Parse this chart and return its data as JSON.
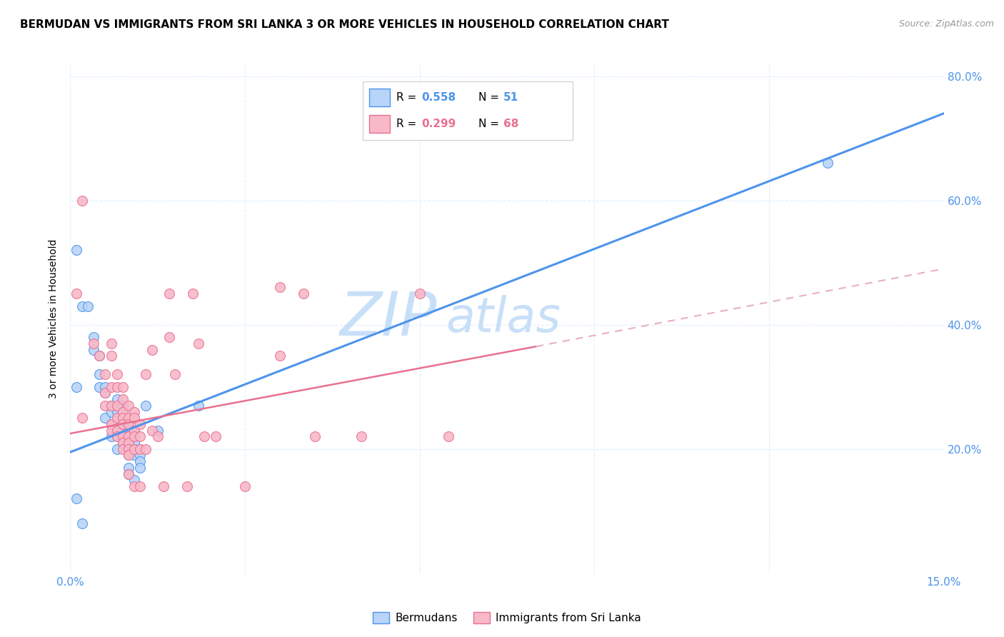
{
  "title": "BERMUDAN VS IMMIGRANTS FROM SRI LANKA 3 OR MORE VEHICLES IN HOUSEHOLD CORRELATION CHART",
  "source": "Source: ZipAtlas.com",
  "ylabel": "3 or more Vehicles in Household",
  "xmin": 0.0,
  "xmax": 0.15,
  "ymin": 0.0,
  "ymax": 0.82,
  "watermark_zip": "ZIP",
  "watermark_atlas": "atlas",
  "watermark_color": "#c8dff8",
  "blue_color": "#4d94eb",
  "pink_color": "#e87090",
  "pink_dashed_color": "#e8b0c0",
  "blue_scatter_color": "#b8d4f8",
  "pink_scatter_color": "#f8b8c8",
  "bermudans": [
    [
      0.001,
      0.52
    ],
    [
      0.002,
      0.43
    ],
    [
      0.003,
      0.43
    ],
    [
      0.004,
      0.38
    ],
    [
      0.004,
      0.36
    ],
    [
      0.005,
      0.35
    ],
    [
      0.005,
      0.32
    ],
    [
      0.005,
      0.3
    ],
    [
      0.006,
      0.3
    ],
    [
      0.006,
      0.29
    ],
    [
      0.006,
      0.25
    ],
    [
      0.007,
      0.27
    ],
    [
      0.007,
      0.26
    ],
    [
      0.007,
      0.24
    ],
    [
      0.007,
      0.22
    ],
    [
      0.008,
      0.28
    ],
    [
      0.008,
      0.26
    ],
    [
      0.008,
      0.24
    ],
    [
      0.008,
      0.22
    ],
    [
      0.008,
      0.2
    ],
    [
      0.009,
      0.27
    ],
    [
      0.009,
      0.25
    ],
    [
      0.009,
      0.24
    ],
    [
      0.009,
      0.23
    ],
    [
      0.009,
      0.22
    ],
    [
      0.009,
      0.21
    ],
    [
      0.01,
      0.24
    ],
    [
      0.01,
      0.23
    ],
    [
      0.01,
      0.22
    ],
    [
      0.01,
      0.21
    ],
    [
      0.01,
      0.2
    ],
    [
      0.01,
      0.19
    ],
    [
      0.01,
      0.17
    ],
    [
      0.01,
      0.16
    ],
    [
      0.011,
      0.23
    ],
    [
      0.011,
      0.22
    ],
    [
      0.011,
      0.21
    ],
    [
      0.011,
      0.2
    ],
    [
      0.011,
      0.19
    ],
    [
      0.011,
      0.15
    ],
    [
      0.012,
      0.2
    ],
    [
      0.012,
      0.19
    ],
    [
      0.012,
      0.18
    ],
    [
      0.012,
      0.17
    ],
    [
      0.013,
      0.27
    ],
    [
      0.015,
      0.23
    ],
    [
      0.022,
      0.27
    ],
    [
      0.001,
      0.12
    ],
    [
      0.002,
      0.08
    ],
    [
      0.13,
      0.66
    ],
    [
      0.001,
      0.3
    ]
  ],
  "sri_lanka": [
    [
      0.002,
      0.6
    ],
    [
      0.004,
      0.37
    ],
    [
      0.005,
      0.35
    ],
    [
      0.006,
      0.32
    ],
    [
      0.006,
      0.29
    ],
    [
      0.006,
      0.27
    ],
    [
      0.007,
      0.37
    ],
    [
      0.007,
      0.35
    ],
    [
      0.007,
      0.3
    ],
    [
      0.007,
      0.27
    ],
    [
      0.007,
      0.24
    ],
    [
      0.007,
      0.23
    ],
    [
      0.008,
      0.32
    ],
    [
      0.008,
      0.3
    ],
    [
      0.008,
      0.27
    ],
    [
      0.008,
      0.25
    ],
    [
      0.008,
      0.23
    ],
    [
      0.008,
      0.22
    ],
    [
      0.009,
      0.3
    ],
    [
      0.009,
      0.28
    ],
    [
      0.009,
      0.26
    ],
    [
      0.009,
      0.25
    ],
    [
      0.009,
      0.24
    ],
    [
      0.009,
      0.22
    ],
    [
      0.009,
      0.21
    ],
    [
      0.009,
      0.2
    ],
    [
      0.01,
      0.27
    ],
    [
      0.01,
      0.25
    ],
    [
      0.01,
      0.24
    ],
    [
      0.01,
      0.22
    ],
    [
      0.01,
      0.21
    ],
    [
      0.01,
      0.2
    ],
    [
      0.01,
      0.19
    ],
    [
      0.01,
      0.16
    ],
    [
      0.011,
      0.26
    ],
    [
      0.011,
      0.25
    ],
    [
      0.011,
      0.23
    ],
    [
      0.011,
      0.22
    ],
    [
      0.011,
      0.2
    ],
    [
      0.011,
      0.14
    ],
    [
      0.012,
      0.24
    ],
    [
      0.012,
      0.22
    ],
    [
      0.012,
      0.2
    ],
    [
      0.012,
      0.14
    ],
    [
      0.013,
      0.32
    ],
    [
      0.013,
      0.2
    ],
    [
      0.014,
      0.36
    ],
    [
      0.014,
      0.23
    ],
    [
      0.015,
      0.22
    ],
    [
      0.016,
      0.14
    ],
    [
      0.017,
      0.45
    ],
    [
      0.017,
      0.38
    ],
    [
      0.018,
      0.32
    ],
    [
      0.02,
      0.14
    ],
    [
      0.021,
      0.45
    ],
    [
      0.023,
      0.22
    ],
    [
      0.025,
      0.22
    ],
    [
      0.03,
      0.14
    ],
    [
      0.036,
      0.46
    ],
    [
      0.036,
      0.35
    ],
    [
      0.04,
      0.45
    ],
    [
      0.05,
      0.22
    ],
    [
      0.06,
      0.45
    ],
    [
      0.022,
      0.37
    ],
    [
      0.042,
      0.22
    ],
    [
      0.065,
      0.22
    ],
    [
      0.001,
      0.45
    ],
    [
      0.002,
      0.25
    ]
  ],
  "blue_line": [
    [
      0.0,
      0.195
    ],
    [
      0.15,
      0.74
    ]
  ],
  "pink_solid_line": [
    [
      0.0,
      0.225
    ],
    [
      0.08,
      0.365
    ]
  ],
  "pink_dashed_line": [
    [
      0.08,
      0.365
    ],
    [
      0.15,
      0.49
    ]
  ],
  "grid_color": "#ddeeff",
  "title_fontsize": 11,
  "axis_color": "#4d94eb",
  "legend_r1": "0.558",
  "legend_n1": "51",
  "legend_r2": "0.299",
  "legend_n2": "68"
}
